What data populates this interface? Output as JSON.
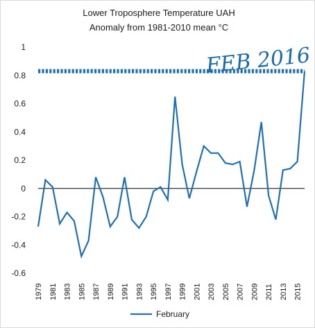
{
  "chart_data": {
    "type": "line",
    "title": "Lower Troposphere  Temperature  UAH",
    "subtitle": "Anomaly  from  1981-2010  mean °C",
    "xlabel": "",
    "ylabel": "",
    "ylim": [
      -0.6,
      1
    ],
    "yticks": [
      "1",
      "0.8",
      "0.6",
      "0.4",
      "0.2",
      "0",
      "-0.2",
      "-0.4",
      "-0.6"
    ],
    "ytick_values": [
      1,
      0.8,
      0.6,
      0.4,
      0.2,
      0,
      -0.2,
      -0.4,
      -0.6
    ],
    "x": [
      1979,
      1980,
      1981,
      1982,
      1983,
      1984,
      1985,
      1986,
      1987,
      1988,
      1989,
      1990,
      1991,
      1992,
      1993,
      1994,
      1995,
      1996,
      1997,
      1998,
      1999,
      2000,
      2001,
      2002,
      2003,
      2004,
      2005,
      2006,
      2007,
      2008,
      2009,
      2010,
      2011,
      2012,
      2013,
      2014,
      2015,
      2016
    ],
    "xticks": [
      "1979",
      "1981",
      "1983",
      "1985",
      "1987",
      "1989",
      "1991",
      "1993",
      "1995",
      "1997",
      "1999",
      "2001",
      "2003",
      "2005",
      "2007",
      "2009",
      "2011",
      "2013",
      "2015"
    ],
    "xtick_values": [
      1979,
      1981,
      1983,
      1985,
      1987,
      1989,
      1991,
      1993,
      1995,
      1997,
      1999,
      2001,
      2003,
      2005,
      2007,
      2009,
      2011,
      2013,
      2015
    ],
    "series": [
      {
        "name": "February",
        "color": "#1f6fb4",
        "values": [
          -0.27,
          0.06,
          0.01,
          -0.25,
          -0.17,
          -0.23,
          -0.48,
          -0.37,
          0.08,
          -0.06,
          -0.27,
          -0.2,
          0.08,
          -0.22,
          -0.28,
          -0.2,
          -0.02,
          0.01,
          -0.08,
          0.65,
          0.17,
          -0.07,
          0.12,
          0.3,
          0.25,
          0.25,
          0.18,
          0.17,
          0.19,
          -0.13,
          0.13,
          0.47,
          -0.05,
          -0.22,
          0.13,
          0.14,
          0.19,
          0.83
        ]
      }
    ],
    "reference_line": {
      "value": 0.83,
      "style": "dotted",
      "color": "#1f6fb4"
    },
    "annotation": "FEB 2016",
    "zero_line": true,
    "grid": false,
    "legend_position": "bottom"
  }
}
